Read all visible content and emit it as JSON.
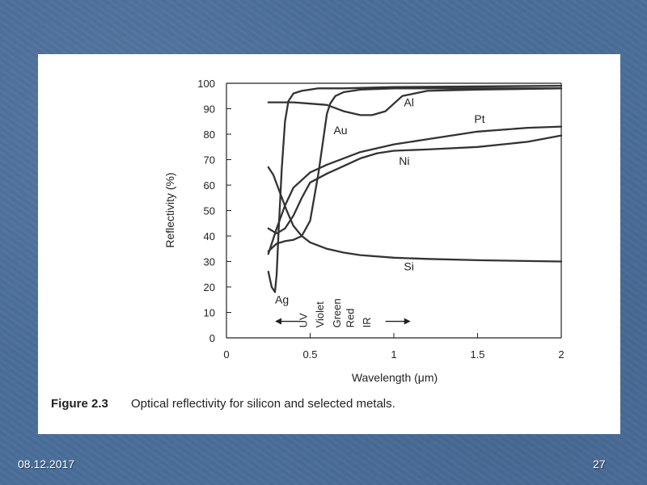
{
  "footer": {
    "date": "08.12.2017",
    "page": "27"
  },
  "caption": {
    "label": "Figure 2.3",
    "text": "Optical reflectivity for silicon and selected metals."
  },
  "chart_data": {
    "type": "line",
    "xlabel": "Wavelength (μm)",
    "ylabel": "Reflectivity (%)",
    "xlim": [
      0,
      2
    ],
    "ylim": [
      0,
      100
    ],
    "xticks": [
      0,
      0.5,
      1,
      1.5,
      2
    ],
    "xtick_labels": [
      "0",
      "0.5",
      "1",
      "1.5",
      "2"
    ],
    "yticks": [
      0,
      10,
      20,
      30,
      40,
      50,
      60,
      70,
      80,
      90,
      100
    ],
    "grid": false,
    "series": [
      {
        "name": "Ag",
        "label_at": [
          0.29,
          13.5
        ],
        "x": [
          0.25,
          0.27,
          0.29,
          0.3,
          0.31,
          0.33,
          0.35,
          0.37,
          0.4,
          0.45,
          0.55,
          0.7,
          1.0,
          2.0
        ],
        "y": [
          26,
          20,
          18,
          25,
          40,
          66,
          85,
          93,
          96,
          97,
          98,
          98,
          98.5,
          99
        ]
      },
      {
        "name": "Al",
        "label_at": [
          1.06,
          91
        ],
        "x": [
          0.25,
          0.4,
          0.5,
          0.6,
          0.7,
          0.8,
          0.87,
          0.95,
          1.0,
          1.05,
          1.2,
          1.5,
          2.0
        ],
        "y": [
          92.5,
          92.5,
          92,
          91.5,
          89,
          87.5,
          87.5,
          89,
          92,
          95,
          97,
          97.5,
          98
        ]
      },
      {
        "name": "Au",
        "label_at": [
          0.64,
          80
        ],
        "x": [
          0.25,
          0.3,
          0.35,
          0.4,
          0.45,
          0.5,
          0.55,
          0.6,
          0.62,
          0.65,
          0.7,
          0.8,
          1.0,
          1.5,
          2.0
        ],
        "y": [
          34,
          37,
          38,
          38.5,
          40,
          46,
          65,
          88,
          92,
          95,
          96.5,
          97.5,
          98,
          98,
          98
        ]
      },
      {
        "name": "Pt",
        "label_at": [
          1.48,
          84.5
        ],
        "x": [
          0.25,
          0.3,
          0.35,
          0.4,
          0.5,
          0.6,
          0.8,
          1.0,
          1.2,
          1.5,
          1.8,
          2.0
        ],
        "y": [
          33,
          43,
          52,
          59,
          65,
          68,
          73,
          76,
          78,
          81,
          82.5,
          83
        ]
      },
      {
        "name": "Ni",
        "label_at": [
          1.03,
          68
        ],
        "x": [
          0.25,
          0.3,
          0.35,
          0.4,
          0.45,
          0.5,
          0.6,
          0.7,
          0.8,
          0.9,
          1.0,
          1.2,
          1.5,
          1.8,
          2.0
        ],
        "y": [
          43,
          41,
          43,
          48,
          55,
          61,
          64.5,
          67.5,
          70.5,
          72.5,
          73.5,
          74,
          75,
          77,
          79.5
        ]
      },
      {
        "name": "Si",
        "label_at": [
          1.06,
          26.5
        ],
        "x": [
          0.25,
          0.28,
          0.32,
          0.36,
          0.4,
          0.45,
          0.5,
          0.6,
          0.7,
          0.8,
          1.0,
          1.2,
          1.5,
          2.0
        ],
        "y": [
          67,
          64,
          57,
          50,
          44,
          40,
          37.5,
          35,
          33.5,
          32.5,
          31.5,
          31,
          30.5,
          30
        ]
      }
    ],
    "spectrum_labels": [
      "UV",
      "Violet",
      "Green",
      "Red",
      "IR"
    ],
    "spectrum_label_x": [
      0.48,
      0.58,
      0.68,
      0.76,
      0.86
    ],
    "arrows": {
      "left_x": [
        0.29,
        0.44
      ],
      "right_x": [
        0.95,
        1.1
      ],
      "y": 6.5
    }
  }
}
